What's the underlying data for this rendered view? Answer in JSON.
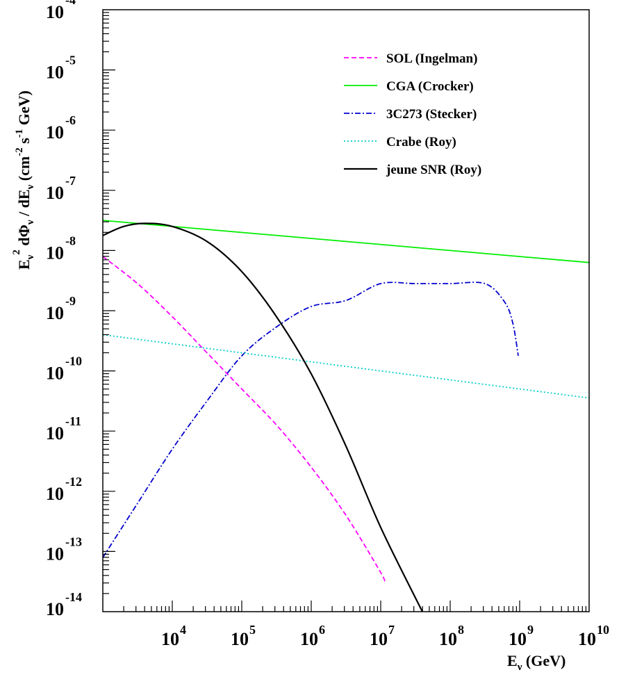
{
  "chart_data": {
    "type": "line",
    "title": "",
    "xlabel": {
      "base": "E",
      "sub": "ν",
      "rest": " (GeV)"
    },
    "ylabel": "E_ν^2 dΦ_ν / dE_ν (cm^-2 s^-1 GeV)",
    "xlim": [
      3,
      10
    ],
    "ylim": [
      -14,
      -4
    ],
    "x_scale": "log",
    "y_scale": "log",
    "grid": false,
    "legend_position": "top-right",
    "x_ticks": [
      {
        "base": "10",
        "exp": "4"
      },
      {
        "base": "10",
        "exp": "5"
      },
      {
        "base": "10",
        "exp": "6"
      },
      {
        "base": "10",
        "exp": "7"
      },
      {
        "base": "10",
        "exp": "8"
      },
      {
        "base": "10",
        "exp": "9"
      },
      {
        "base": "10",
        "exp": "10"
      }
    ],
    "y_ticks": [
      {
        "base": "10",
        "exp": "-4"
      },
      {
        "base": "10",
        "exp": "-5"
      },
      {
        "base": "10",
        "exp": "-6"
      },
      {
        "base": "10",
        "exp": "-7"
      },
      {
        "base": "10",
        "exp": "-8"
      },
      {
        "base": "10",
        "exp": "-9"
      },
      {
        "base": "10",
        "exp": "-10"
      },
      {
        "base": "10",
        "exp": "-11"
      },
      {
        "base": "10",
        "exp": "-12"
      },
      {
        "base": "10",
        "exp": "-13"
      },
      {
        "base": "10",
        "exp": "-14"
      }
    ],
    "series": [
      {
        "name": "SOL (Ingelman)",
        "color": "#ff00ff",
        "dash": "dashed",
        "points": [
          [
            3.0,
            -8.1
          ],
          [
            3.5,
            -8.55
          ],
          [
            4.0,
            -9.1
          ],
          [
            4.5,
            -9.7
          ],
          [
            5.0,
            -10.3
          ],
          [
            5.5,
            -10.9
          ],
          [
            6.0,
            -11.6
          ],
          [
            6.5,
            -12.4
          ],
          [
            7.0,
            -13.35
          ],
          [
            7.05,
            -13.5
          ]
        ]
      },
      {
        "name": "CGA (Crocker)",
        "color": "#00ee00",
        "dash": "solid",
        "points": [
          [
            3.0,
            -7.5
          ],
          [
            10.0,
            -8.2
          ]
        ]
      },
      {
        "name": "3C273 (Stecker)",
        "color": "#0000cc",
        "dash": "dashdot",
        "points": [
          [
            3.0,
            -13.1
          ],
          [
            3.5,
            -12.2
          ],
          [
            4.0,
            -11.3
          ],
          [
            4.5,
            -10.5
          ],
          [
            5.0,
            -9.75
          ],
          [
            5.5,
            -9.27
          ],
          [
            6.0,
            -8.93
          ],
          [
            6.5,
            -8.83
          ],
          [
            7.0,
            -8.55
          ],
          [
            7.5,
            -8.55
          ],
          [
            8.0,
            -8.55
          ],
          [
            8.5,
            -8.55
          ],
          [
            8.78,
            -8.85
          ],
          [
            8.9,
            -9.2
          ],
          [
            8.98,
            -9.75
          ]
        ]
      },
      {
        "name": "Crabe (Roy)",
        "color": "#00cccc",
        "dash": "dotted",
        "points": [
          [
            3.0,
            -9.4
          ],
          [
            10.0,
            -10.45
          ]
        ]
      },
      {
        "name": "jeune SNR (Roy)",
        "color": "#000000",
        "dash": "solid",
        "points": [
          [
            3.0,
            -7.75
          ],
          [
            3.3,
            -7.6
          ],
          [
            3.6,
            -7.55
          ],
          [
            4.0,
            -7.6
          ],
          [
            4.5,
            -7.85
          ],
          [
            5.0,
            -8.35
          ],
          [
            5.5,
            -9.1
          ],
          [
            6.0,
            -10.05
          ],
          [
            6.5,
            -11.25
          ],
          [
            7.0,
            -12.6
          ],
          [
            7.6,
            -14.0
          ]
        ]
      }
    ]
  }
}
